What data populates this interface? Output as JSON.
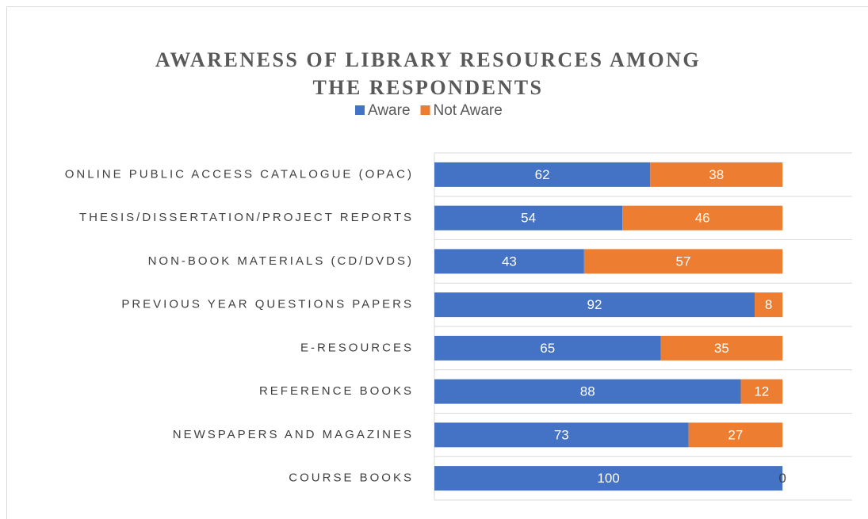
{
  "chart_data": {
    "type": "stacked-bar-horizontal",
    "title": "AWARENESS OF LIBRARY RESOURCES AMONG THE RESPONDENTS",
    "categories": [
      "ONLINE PUBLIC ACCESS CATALOGUE (OPAC)",
      "THESIS/DISSERTATION/PROJECT REPORTS",
      "NON-BOOK MATERIALS (CD/DVDS)",
      "PREVIOUS YEAR QUESTIONS PAPERS",
      "E-RESOURCES",
      "REFERENCE BOOKS",
      "NEWSPAPERS AND MAGAZINES",
      "COURSE BOOKS"
    ],
    "series": [
      {
        "name": "Aware",
        "color": "#4472c4",
        "values": [
          62,
          54,
          43,
          92,
          65,
          88,
          73,
          100
        ]
      },
      {
        "name": "Not Aware",
        "color": "#ed7d31",
        "values": [
          38,
          46,
          57,
          8,
          35,
          12,
          27,
          0
        ]
      }
    ],
    "xlim": [
      0,
      120
    ],
    "legend": "top"
  }
}
